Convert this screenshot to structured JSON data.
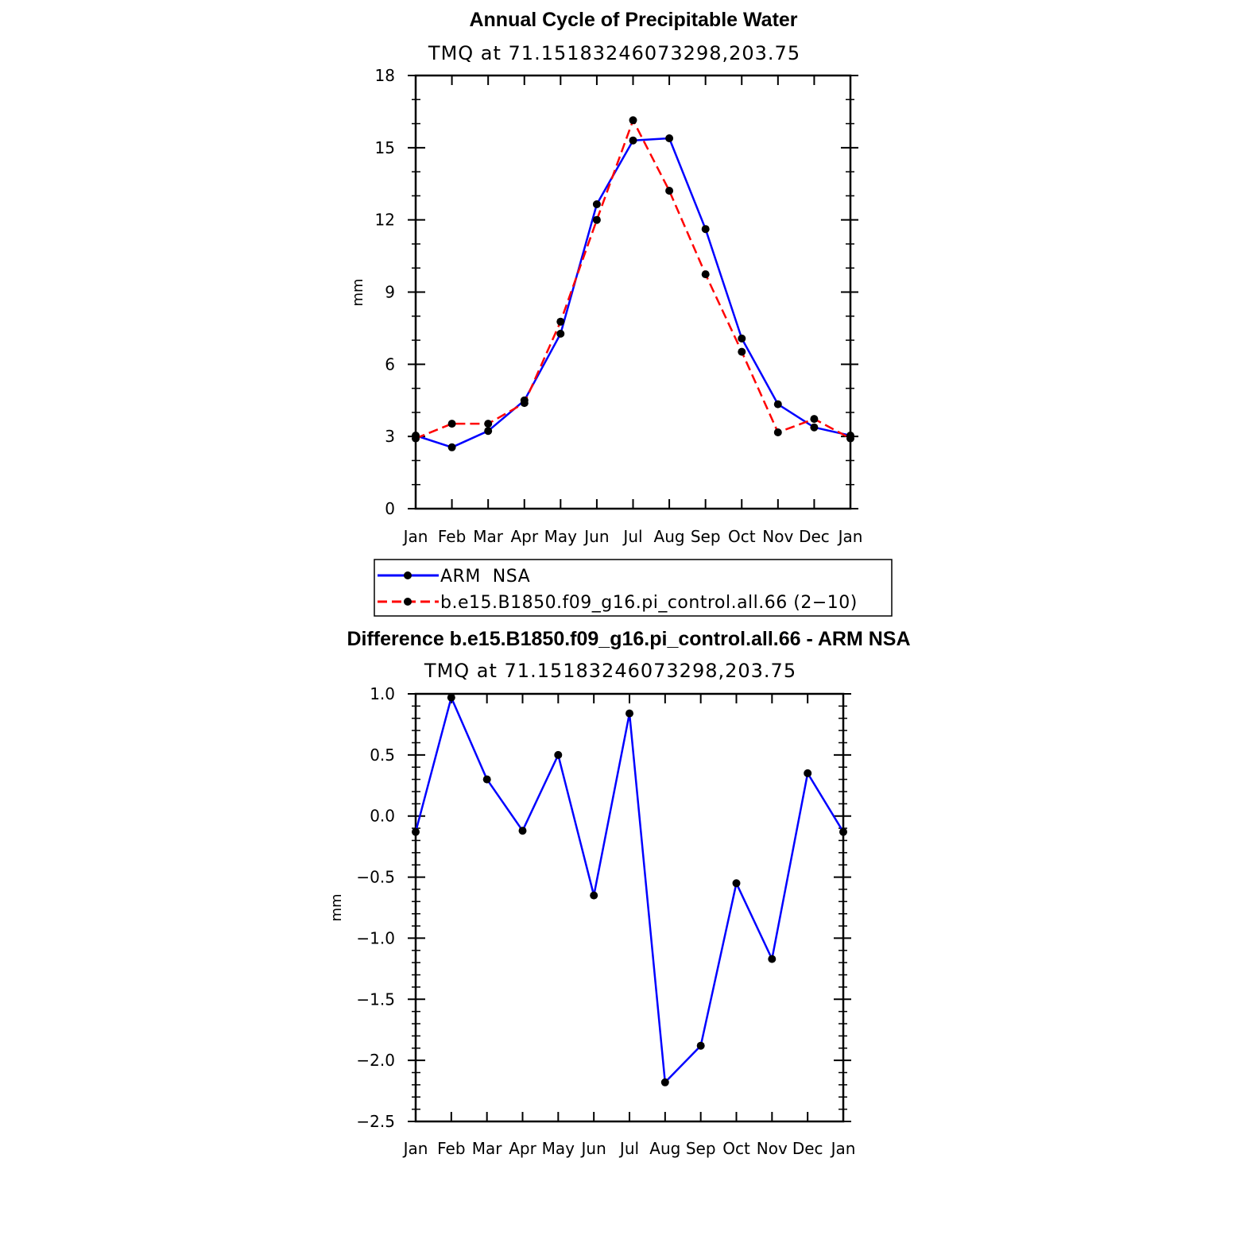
{
  "chart_data": [
    {
      "type": "line",
      "title": "Annual Cycle of Precipitable Water",
      "subtitle": "TMQ  at  71.15183246073298,203.75",
      "xlabel": "",
      "ylabel": "mm",
      "categories": [
        "Jan",
        "Feb",
        "Mar",
        "Apr",
        "May",
        "Jun",
        "Jul",
        "Aug",
        "Sep",
        "Oct",
        "Nov",
        "Dec",
        "Jan"
      ],
      "ylim": [
        0,
        18
      ],
      "yticks": [
        "0",
        "3",
        "6",
        "9",
        "12",
        "15",
        "18"
      ],
      "series": [
        {
          "name": "ARM  NSA",
          "color": "#0000ff",
          "dash": "solid",
          "values": [
            3.04,
            2.55,
            3.23,
            4.5,
            7.27,
            12.65,
            15.3,
            15.39,
            11.62,
            7.07,
            4.34,
            3.38,
            3.04
          ]
        },
        {
          "name": "b.e15.B1850.f09_g16.pi_control.all.66 (2−10)",
          "color": "#ff0000",
          "dash": "dashed",
          "values": [
            2.92,
            3.53,
            3.53,
            4.39,
            7.77,
            12.0,
            16.14,
            13.21,
            9.74,
            6.52,
            3.17,
            3.73,
            2.92
          ]
        }
      ],
      "legend": "below"
    },
    {
      "type": "line",
      "title": "Difference b.e15.B1850.f09_g16.pi_control.all.66 - ARM NSA",
      "subtitle": "TMQ  at  71.15183246073298,203.75",
      "xlabel": "",
      "ylabel": "mm",
      "categories": [
        "Jan",
        "Feb",
        "Mar",
        "Apr",
        "May",
        "Jun",
        "Jul",
        "Aug",
        "Sep",
        "Oct",
        "Nov",
        "Dec",
        "Jan"
      ],
      "ylim": [
        -2.5,
        1.0
      ],
      "yticks": [
        "−2.5",
        "−2.0",
        "−1.5",
        "−1.0",
        "−0.5",
        "0.0",
        "0.5",
        "1.0"
      ],
      "series": [
        {
          "color": "#0000ff",
          "dash": "solid",
          "values": [
            -0.13,
            0.97,
            0.3,
            -0.12,
            0.5,
            -0.65,
            0.84,
            -2.18,
            -1.88,
            -0.55,
            -1.17,
            0.35,
            -0.13
          ]
        }
      ]
    }
  ]
}
